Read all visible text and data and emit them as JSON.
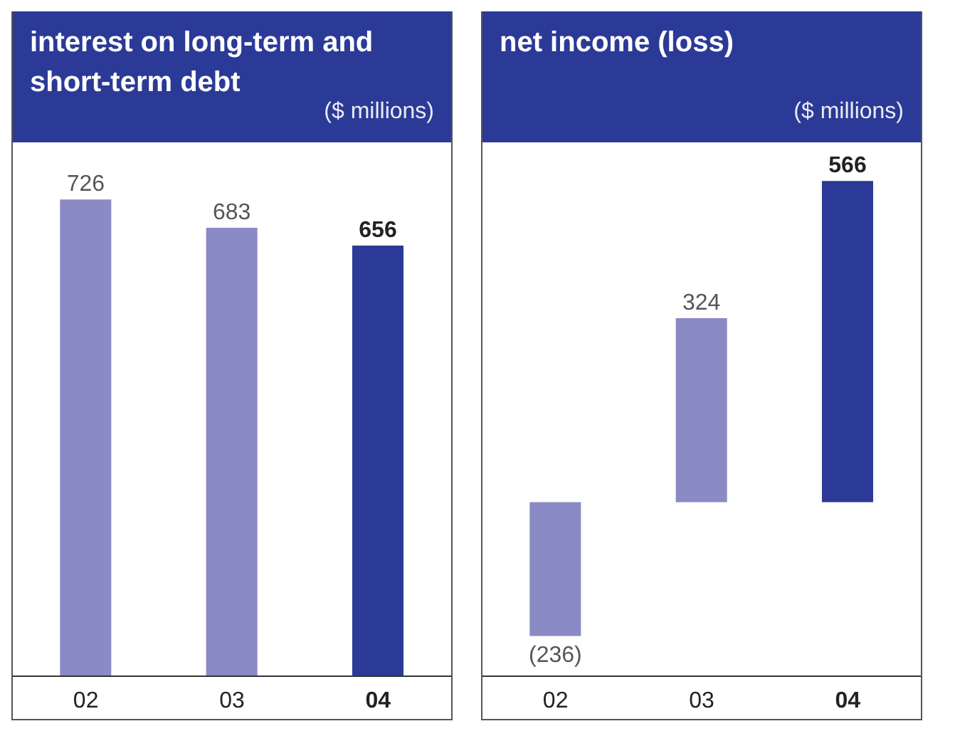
{
  "chart_data": [
    {
      "type": "bar",
      "title": "interest on long-term and short-term debt",
      "subtitle": "($ millions)",
      "categories": [
        "02",
        "03",
        "04"
      ],
      "values": [
        726,
        683,
        656
      ],
      "colors": [
        "#8a8ac4",
        "#8a8ac4",
        "#2b3a96"
      ],
      "data_labels": true,
      "tick_labels": "x"
    },
    {
      "type": "bar",
      "title": "net income (loss)",
      "subtitle": "($ millions)",
      "categories": [
        "02",
        "03",
        "04"
      ],
      "values": [
        -236,
        324,
        566
      ],
      "colors": [
        "#8a8ac4",
        "#8a8ac4",
        "#2b3a96"
      ],
      "value_labels": [
        "(236)",
        "324",
        "566"
      ],
      "tick_labels": "x"
    }
  ]
}
